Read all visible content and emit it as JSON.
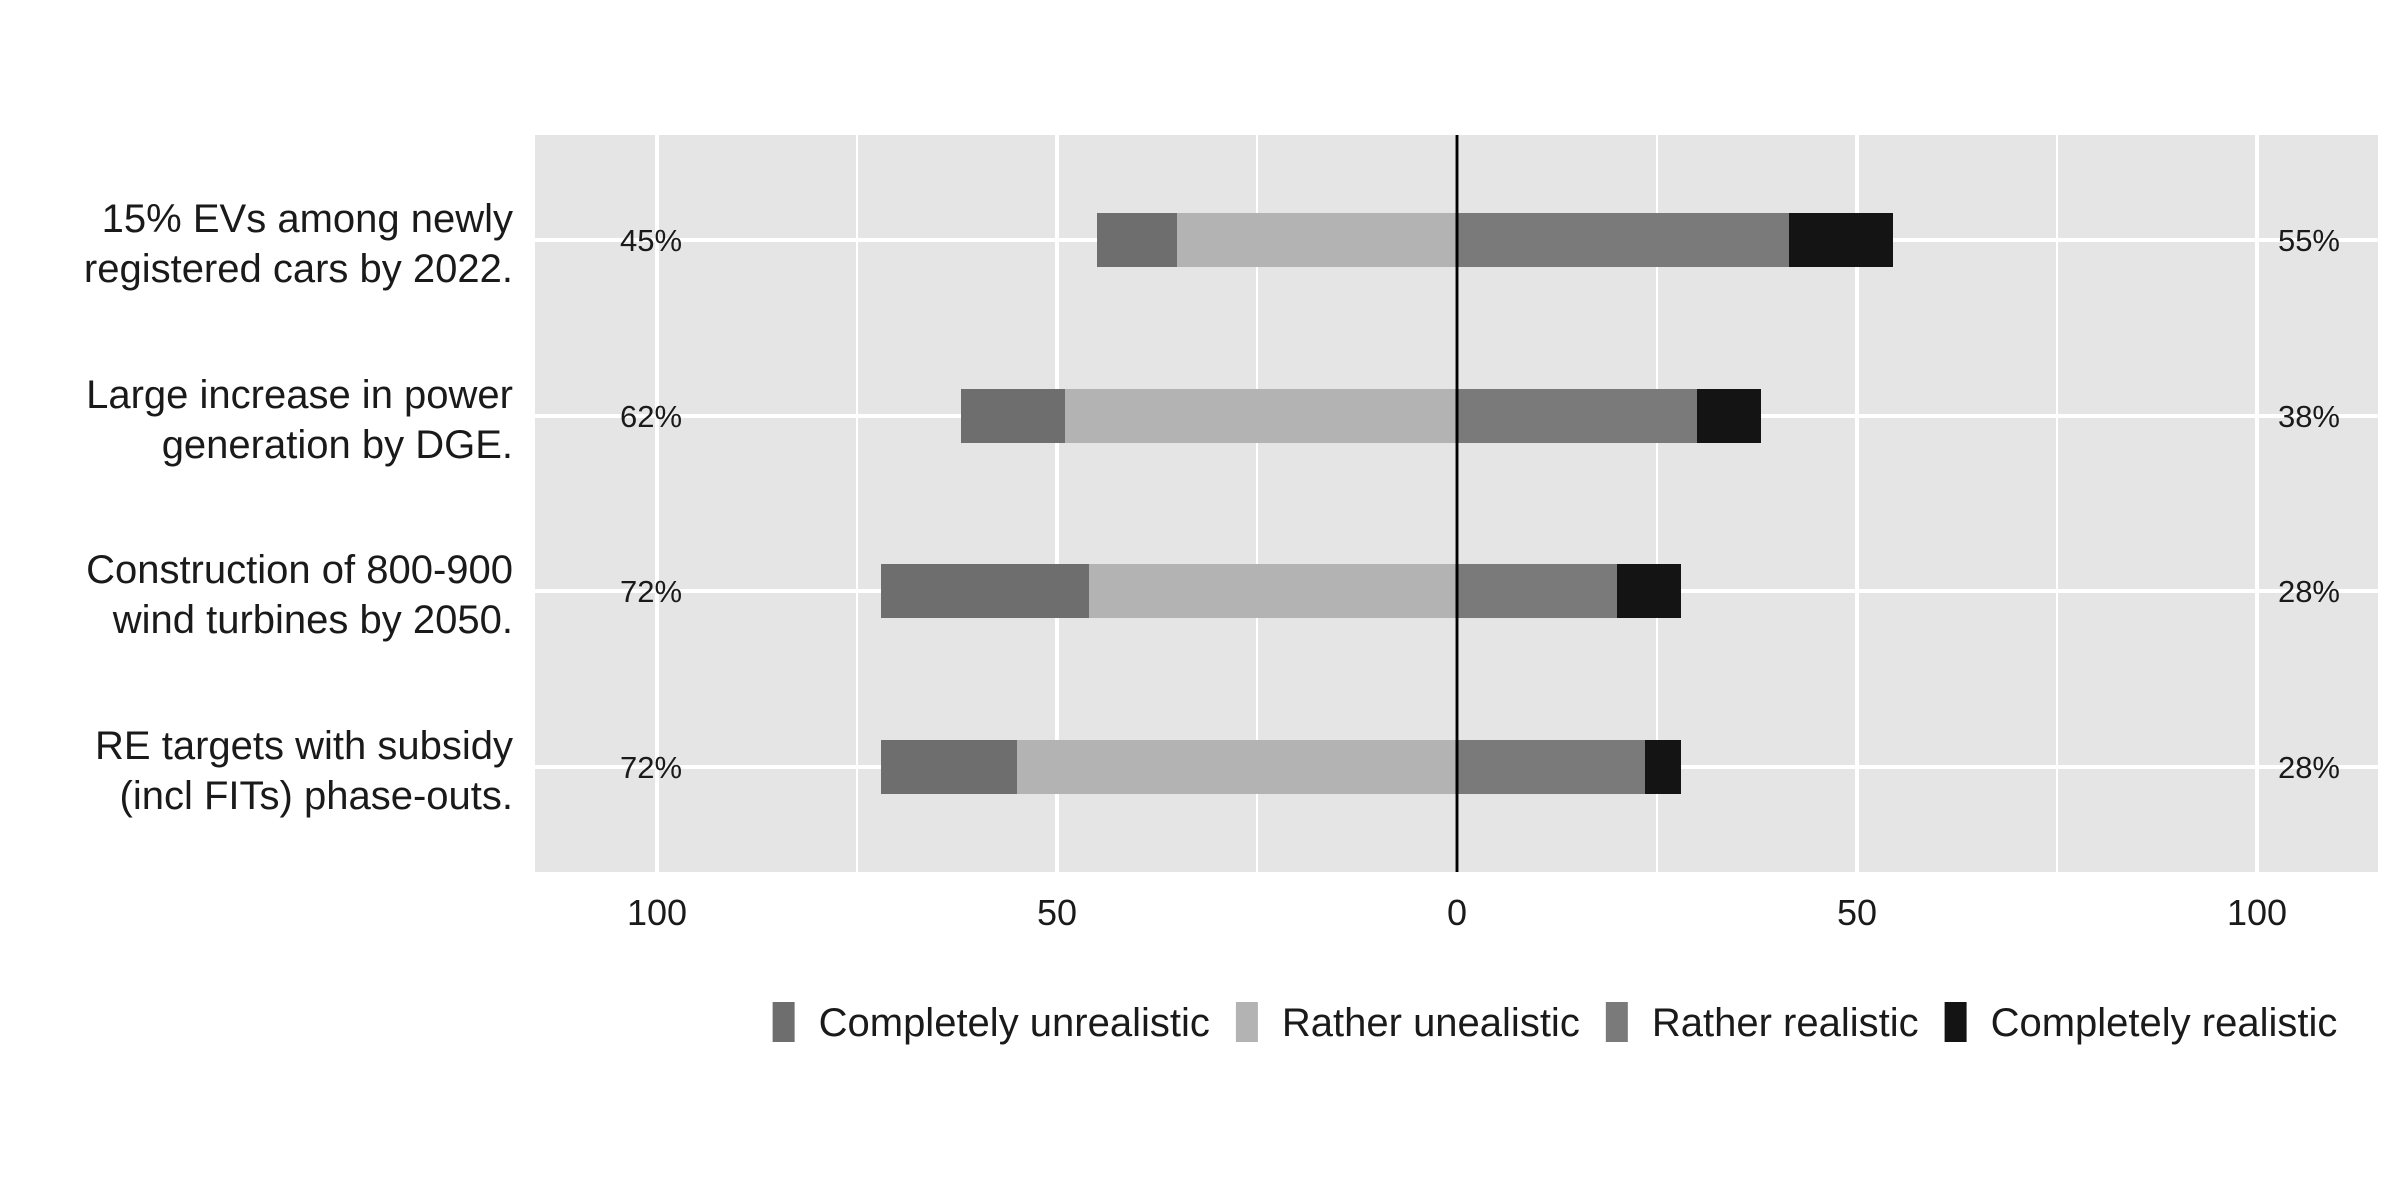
{
  "chart_data": {
    "type": "bar",
    "orientation": "horizontal",
    "layout": "diverging-stacked",
    "categories": [
      [
        "15% EVs among newly",
        "registered cars by 2022."
      ],
      [
        "Large increase in power",
        "generation by DGE."
      ],
      [
        "Construction of 800-900",
        "wind turbines by 2050."
      ],
      [
        "RE targets with subsidy",
        "(incl FITs) phase-outs."
      ]
    ],
    "series": [
      {
        "name": "Completely unrealistic",
        "side": "negative",
        "color": "#6e6e6e",
        "values": [
          10,
          13,
          26,
          17
        ]
      },
      {
        "name": "Rather unealistic",
        "side": "negative",
        "color": "#b3b3b3",
        "values": [
          35,
          49,
          46,
          55
        ]
      },
      {
        "name": "Rather realistic",
        "side": "positive",
        "color": "#7a7a7a",
        "values": [
          41.5,
          30,
          20,
          23.5
        ]
      },
      {
        "name": "Completely realistic",
        "side": "positive",
        "color": "#141414",
        "values": [
          13,
          8,
          8,
          4.5
        ]
      }
    ],
    "left_totals": [
      "45%",
      "62%",
      "72%",
      "72%"
    ],
    "right_totals": [
      "55%",
      "38%",
      "28%",
      "28%"
    ],
    "x_ticks": [
      {
        "value": -100,
        "label": "100"
      },
      {
        "value": -50,
        "label": "50"
      },
      {
        "value": 0,
        "label": "0"
      },
      {
        "value": 50,
        "label": "50"
      },
      {
        "value": 100,
        "label": "100"
      }
    ],
    "xlim": [
      -115,
      115
    ],
    "title": "",
    "xlabel": "",
    "ylabel": "",
    "grid": true,
    "legend_position": "bottom",
    "panel_color": "#e5e5e5",
    "grid_color": "#ffffff"
  }
}
